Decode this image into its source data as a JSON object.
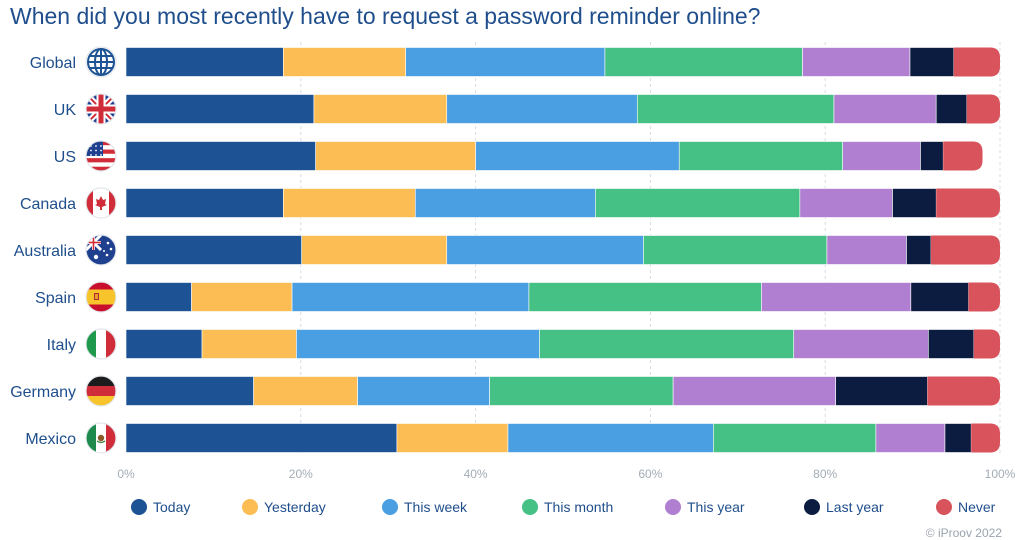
{
  "page": {
    "title": "When did you most recently have to request a password reminder online?",
    "credit": "© iProov 2022"
  },
  "chart_data": {
    "type": "bar",
    "orientation": "horizontal",
    "stacked": true,
    "normalized": true,
    "title": "When did you most recently have to request a password reminder online?",
    "categories": [
      "Global",
      "UK",
      "US",
      "Canada",
      "Australia",
      "Spain",
      "Italy",
      "Germany",
      "Mexico"
    ],
    "category_icons": [
      "globe-icon",
      "uk-flag-icon",
      "us-flag-icon",
      "canada-flag-icon",
      "australia-flag-icon",
      "spain-flag-icon",
      "italy-flag-icon",
      "germany-flag-icon",
      "mexico-flag-icon"
    ],
    "series": [
      {
        "name": "Today",
        "color": "#1d5294",
        "values": [
          18,
          21.5,
          21.7,
          18,
          20.1,
          7.5,
          8.7,
          14.6,
          31
        ]
      },
      {
        "name": "Yesterday",
        "color": "#fbbd54",
        "values": [
          14,
          15.2,
          18.3,
          15.1,
          16.6,
          11.5,
          10.8,
          11.9,
          12.7
        ]
      },
      {
        "name": "This week",
        "color": "#4a9fe2",
        "values": [
          22.8,
          21.8,
          23.3,
          20.6,
          22.5,
          27.1,
          27.8,
          15.1,
          23.5
        ]
      },
      {
        "name": "This month",
        "color": "#45c186",
        "values": [
          22.6,
          22.5,
          18.7,
          23.4,
          21,
          26.6,
          29.1,
          21,
          18.6
        ]
      },
      {
        "name": "This year",
        "color": "#b07fd2",
        "values": [
          12.3,
          11.7,
          8.9,
          10.6,
          9.1,
          17.1,
          15.4,
          18.6,
          7.9
        ]
      },
      {
        "name": "Last year",
        "color": "#0c1c40",
        "values": [
          5,
          3.5,
          2.6,
          5,
          2.8,
          6.6,
          5.2,
          10.5,
          3
        ]
      },
      {
        "name": "Never",
        "color": "#d9535c",
        "values": [
          5.3,
          3.8,
          4.5,
          7.3,
          7.9,
          3.6,
          3,
          8.3,
          3.3
        ]
      }
    ],
    "x_ticks": [
      "0%",
      "20%",
      "40%",
      "60%",
      "80%",
      "100%"
    ],
    "xlim": [
      0,
      100
    ],
    "grid": true,
    "legend": "bottom"
  }
}
